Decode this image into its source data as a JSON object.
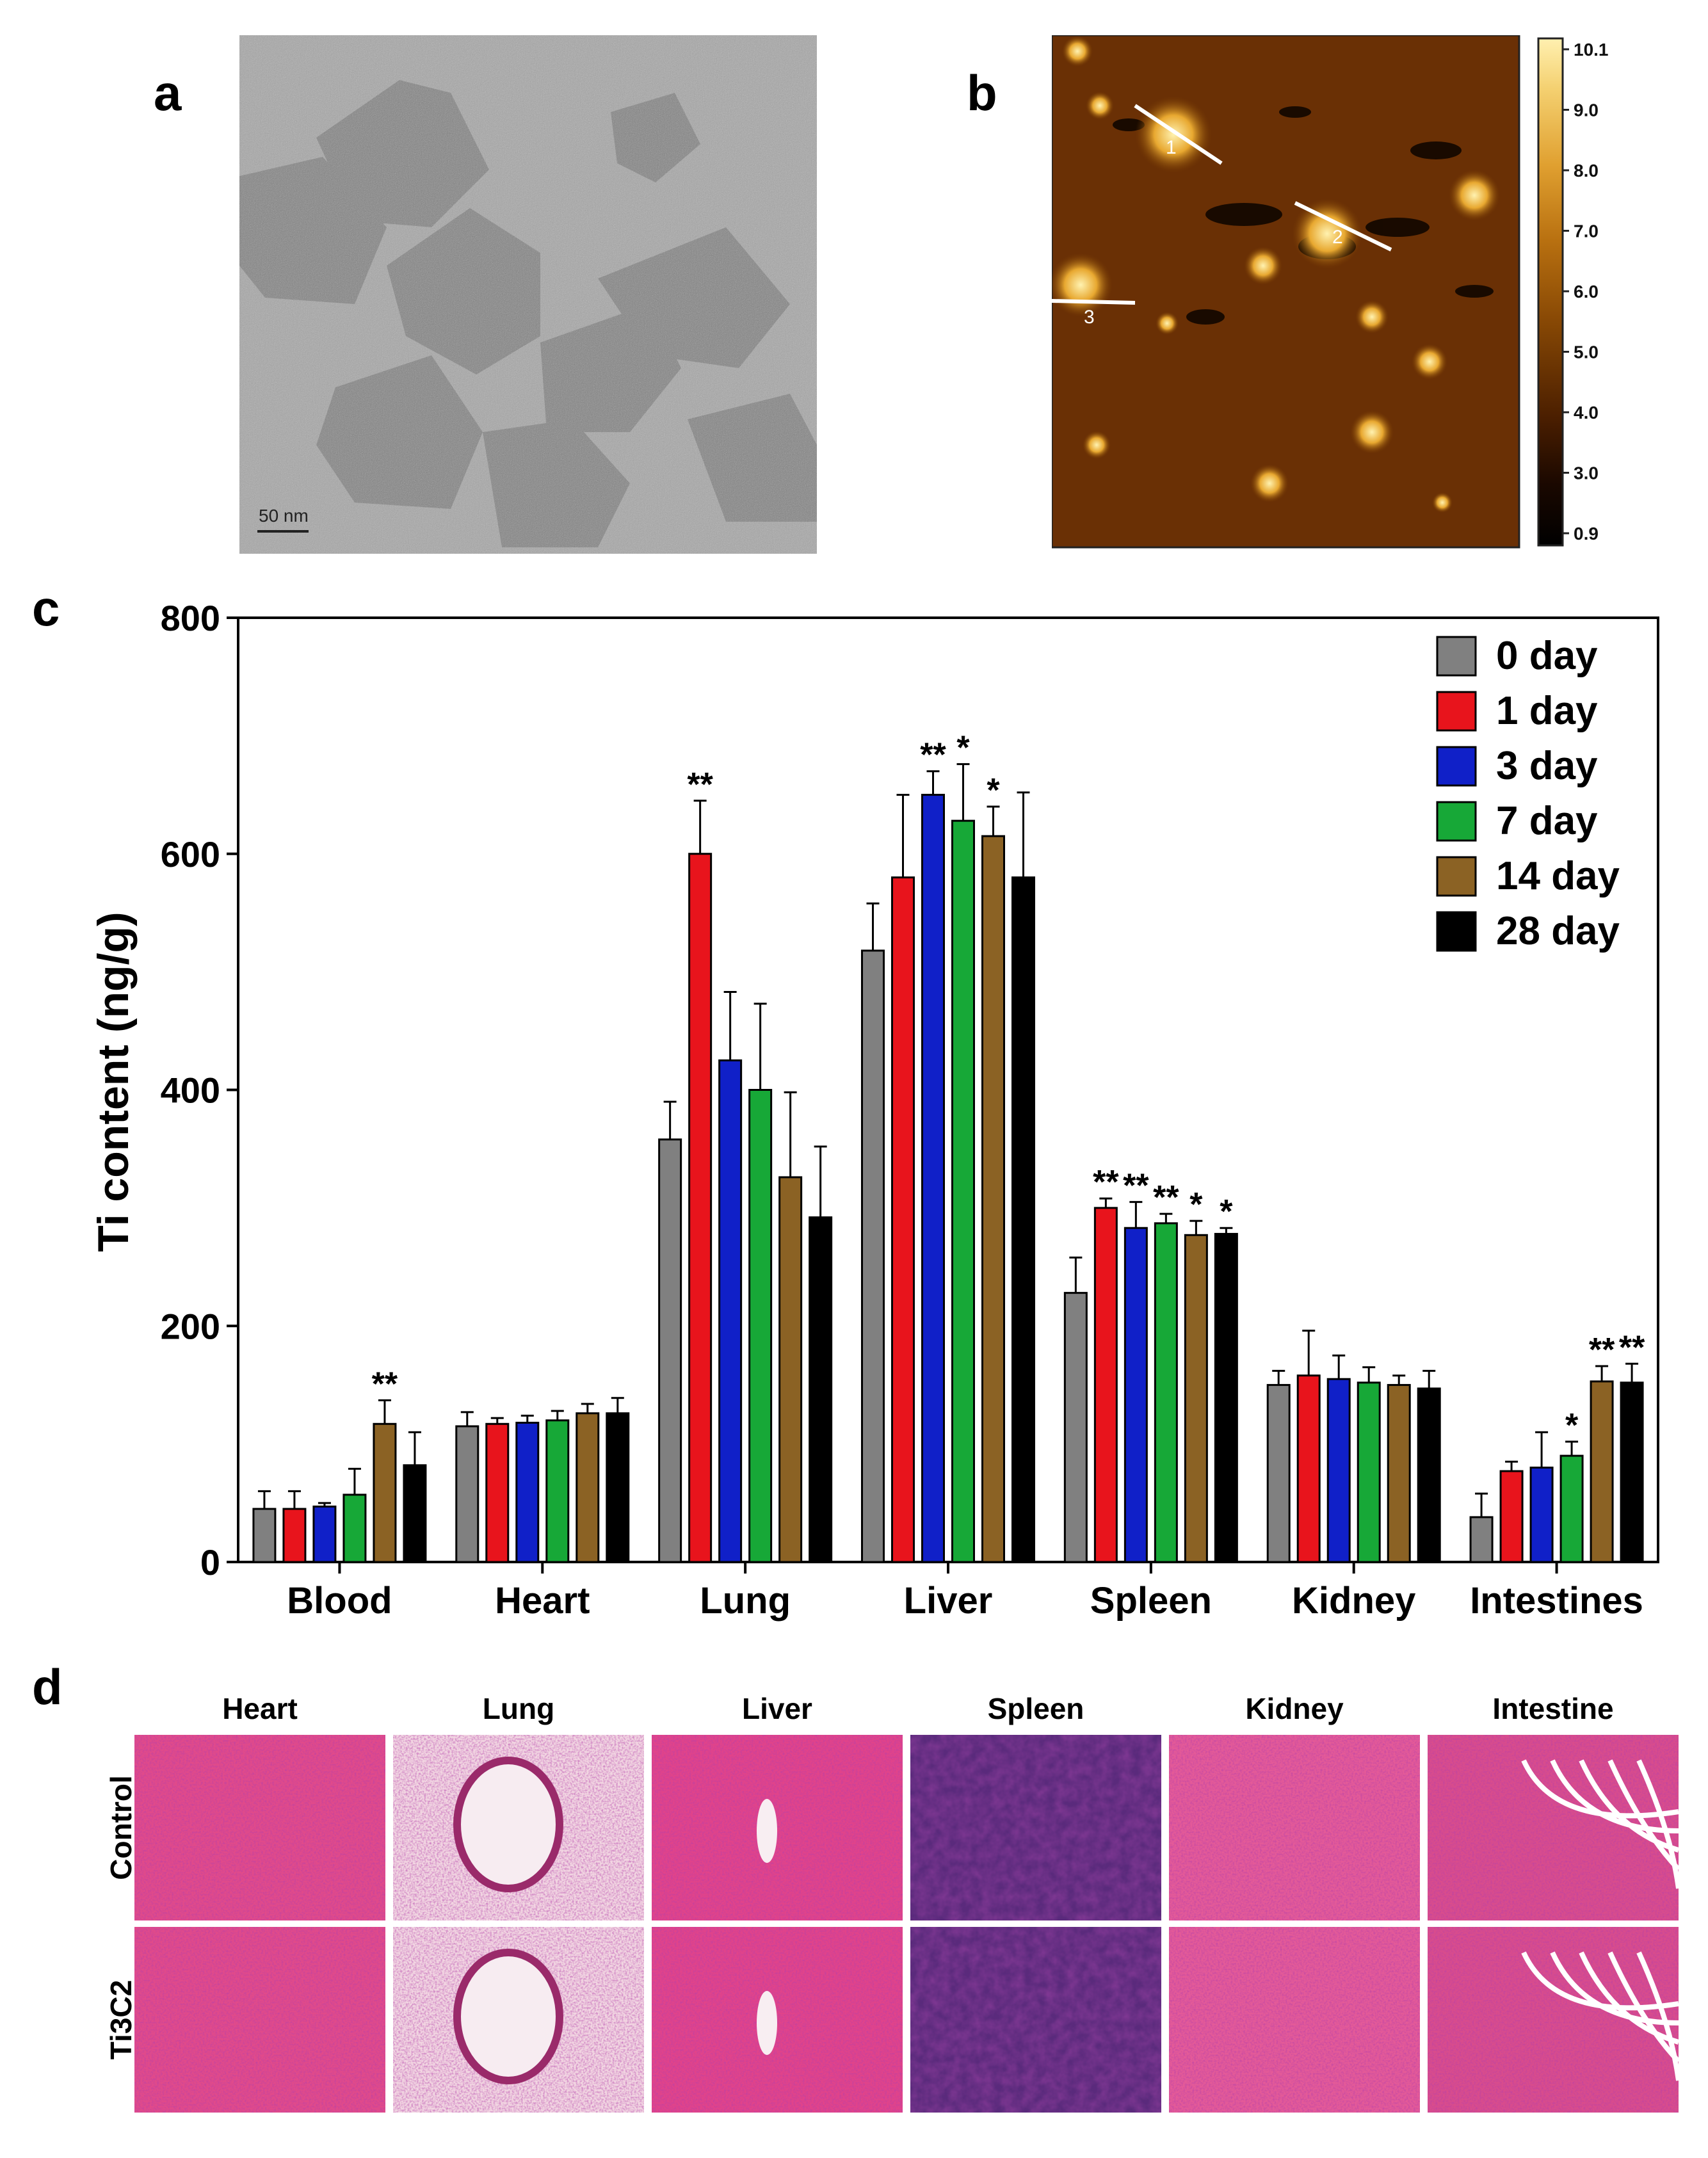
{
  "panels": {
    "a": {
      "label": "a",
      "scale_bar": "50 nm"
    },
    "b": {
      "label": "b",
      "markers": [
        "1",
        "2",
        "3"
      ],
      "colorbar_ticks": [
        "10.1",
        "9.0",
        "8.0",
        "7.0",
        "6.0",
        "5.0",
        "4.0",
        "3.0",
        "0.9"
      ]
    },
    "c": {
      "label": "c"
    },
    "d": {
      "label": "d",
      "columns": [
        "Heart",
        "Lung",
        "Liver",
        "Spleen",
        "Kidney",
        "Intestine"
      ],
      "rows": [
        "Control",
        "Ti3C2"
      ]
    }
  },
  "colors": {
    "0 day": "#808080",
    "1 day": "#e8141c",
    "3 day": "#1020c8",
    "7 day": "#17a837",
    "14 day": "#8b6224",
    "28 day": "#000000"
  },
  "chart_data": {
    "type": "bar",
    "title": "",
    "xlabel": "",
    "ylabel": "Ti content (ng/g)",
    "ylim": [
      0,
      800
    ],
    "yticks": [
      "0",
      "200",
      "400",
      "600",
      "800"
    ],
    "categories": [
      "Blood",
      "Heart",
      "Lung",
      "Liver",
      "Spleen",
      "Kidney",
      "Intestines"
    ],
    "series": [
      {
        "name": "0 day",
        "values": [
          45,
          115,
          358,
          518,
          228,
          150,
          38
        ],
        "errors": [
          15,
          12,
          32,
          40,
          30,
          12,
          20
        ]
      },
      {
        "name": "1 day",
        "values": [
          45,
          117,
          600,
          580,
          300,
          158,
          77
        ],
        "errors": [
          15,
          5,
          45,
          70,
          8,
          38,
          8
        ]
      },
      {
        "name": "3 day",
        "values": [
          47,
          118,
          425,
          650,
          283,
          155,
          80
        ],
        "errors": [
          3,
          6,
          58,
          20,
          22,
          20,
          30
        ]
      },
      {
        "name": "7 day",
        "values": [
          57,
          120,
          400,
          628,
          287,
          152,
          90
        ],
        "errors": [
          22,
          8,
          73,
          48,
          8,
          13,
          12
        ]
      },
      {
        "name": "14 day",
        "values": [
          117,
          126,
          326,
          615,
          277,
          150,
          153
        ],
        "errors": [
          20,
          8,
          72,
          25,
          12,
          8,
          13
        ]
      },
      {
        "name": "28 day",
        "values": [
          82,
          126,
          292,
          580,
          278,
          147,
          152
        ],
        "errors": [
          28,
          13,
          60,
          72,
          5,
          15,
          16
        ]
      }
    ],
    "annotations": [
      {
        "category": "Blood",
        "series": "14 day",
        "text": "**"
      },
      {
        "category": "Lung",
        "series": "1 day",
        "text": "**"
      },
      {
        "category": "Liver",
        "series": "3 day",
        "text": "**"
      },
      {
        "category": "Liver",
        "series": "7 day",
        "text": "*"
      },
      {
        "category": "Liver",
        "series": "14 day",
        "text": "*"
      },
      {
        "category": "Spleen",
        "series": "1 day",
        "text": "**"
      },
      {
        "category": "Spleen",
        "series": "3 day",
        "text": "**"
      },
      {
        "category": "Spleen",
        "series": "7 day",
        "text": "**"
      },
      {
        "category": "Spleen",
        "series": "14 day",
        "text": "*"
      },
      {
        "category": "Spleen",
        "series": "28 day",
        "text": "*"
      },
      {
        "category": "Intestines",
        "series": "7 day",
        "text": "*"
      },
      {
        "category": "Intestines",
        "series": "14 day",
        "text": "**"
      },
      {
        "category": "Intestines",
        "series": "28 day",
        "text": "**"
      }
    ],
    "legend": {
      "position": "top-right",
      "entries": [
        "0 day",
        "1 day",
        "3 day",
        "7 day",
        "14 day",
        "28 day"
      ]
    }
  }
}
